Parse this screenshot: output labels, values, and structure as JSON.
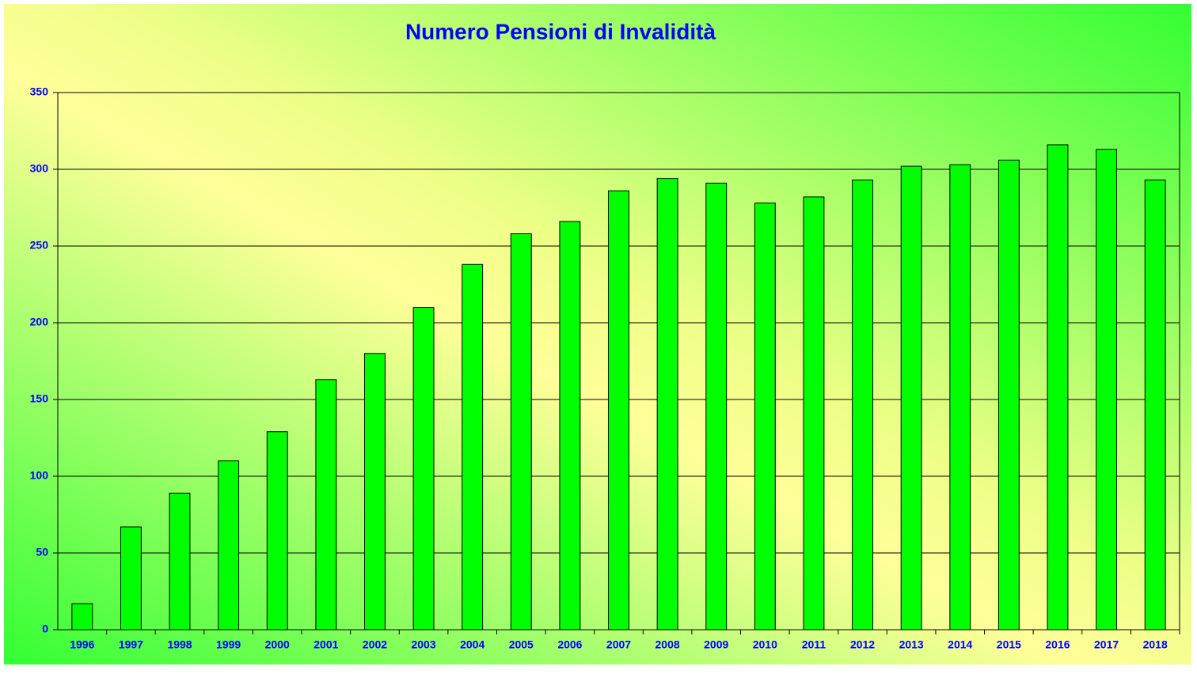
{
  "chart_data": {
    "type": "bar",
    "title": "Numero Pensioni di Invalidità",
    "categories": [
      "1996",
      "1997",
      "1998",
      "1999",
      "2000",
      "2001",
      "2002",
      "2003",
      "2004",
      "2005",
      "2006",
      "2007",
      "2008",
      "2009",
      "2010",
      "2011",
      "2012",
      "2013",
      "2014",
      "2015",
      "2016",
      "2017",
      "2018"
    ],
    "values": [
      17,
      67,
      89,
      110,
      129,
      163,
      180,
      210,
      238,
      258,
      266,
      286,
      294,
      291,
      278,
      282,
      293,
      302,
      303,
      306,
      316,
      313,
      293
    ],
    "color": "#00ff00",
    "ylim": [
      0,
      350
    ],
    "yticks": [
      0,
      50,
      100,
      150,
      200,
      250,
      300,
      350
    ],
    "grid": true
  }
}
